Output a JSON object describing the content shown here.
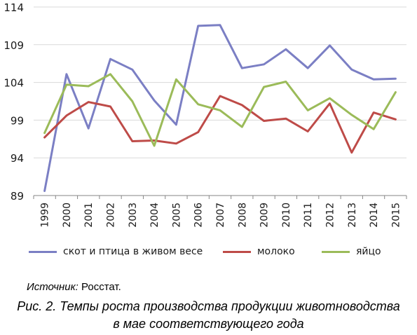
{
  "chart_data": {
    "type": "line",
    "x": [
      "1999",
      "2000",
      "2001",
      "2002",
      "2003",
      "2004",
      "2005",
      "2006",
      "2007",
      "2008",
      "2009",
      "2010",
      "2011",
      "2012",
      "2013",
      "2014",
      "2015"
    ],
    "ylim": [
      89,
      114
    ],
    "yticks": [
      89,
      94,
      99,
      104,
      109,
      114
    ],
    "grid": true,
    "legend_position": "bottom",
    "series": [
      {
        "name": "скот и птица в живом весе",
        "color": "#7b7fc4",
        "values": [
          89.6,
          105.1,
          97.9,
          107.1,
          105.7,
          101.6,
          98.4,
          111.5,
          111.6,
          105.9,
          106.4,
          108.4,
          105.9,
          108.9,
          105.7,
          104.4,
          104.5
        ]
      },
      {
        "name": "молоко",
        "color": "#be4b48",
        "values": [
          96.7,
          99.6,
          101.4,
          100.8,
          96.2,
          96.3,
          95.9,
          97.4,
          102.2,
          101.0,
          98.9,
          99.2,
          97.5,
          101.2,
          94.7,
          100.0,
          99.1
        ]
      },
      {
        "name": "яйцо",
        "color": "#9bbb59",
        "values": [
          97.3,
          103.7,
          103.5,
          105.1,
          101.5,
          95.6,
          104.4,
          101.1,
          100.3,
          98.1,
          103.4,
          104.1,
          100.3,
          101.9,
          99.7,
          97.8,
          102.7
        ]
      }
    ]
  },
  "source": {
    "label": "Источник:",
    "value": "Росстат."
  },
  "caption": {
    "line1": "Рис. 2. Темпы роста производства продукции животноводства",
    "line2": "в мае соответствующего года"
  }
}
